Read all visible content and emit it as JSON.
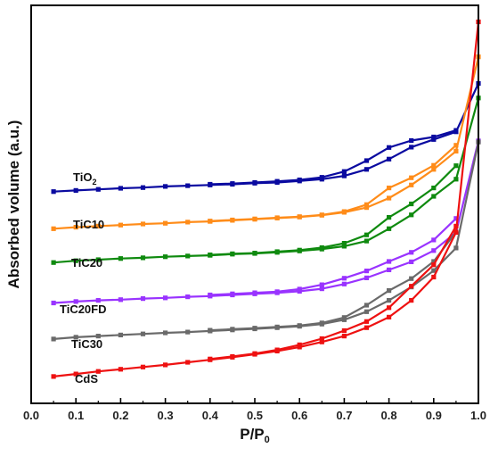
{
  "chart_data": {
    "type": "line",
    "xlabel": "P/P",
    "xlabel_subscript": "0",
    "ylabel": "Absorbed volume (a.u.)",
    "xlim": [
      0.0,
      1.0
    ],
    "ylim": [
      0,
      100
    ],
    "grid": false,
    "legend": "inline labels",
    "x_ticks": [
      "0.0",
      "0.1",
      "0.2",
      "0.3",
      "0.4",
      "0.5",
      "0.6",
      "0.7",
      "0.8",
      "0.9",
      "1.0"
    ],
    "series": [
      {
        "name": "TiO",
        "name_subscript": "2",
        "color": "#0a0aa0",
        "adsorption": {
          "x": [
            0.05,
            0.1,
            0.15,
            0.2,
            0.25,
            0.3,
            0.35,
            0.4,
            0.45,
            0.5,
            0.55,
            0.6,
            0.65,
            0.7,
            0.75,
            0.8,
            0.85,
            0.9,
            0.95,
            1.0
          ],
          "y": [
            51.8,
            52.1,
            52.4,
            52.7,
            52.9,
            53.2,
            53.4,
            53.6,
            53.8,
            54.1,
            54.3,
            54.7,
            55.2,
            56.1,
            57.9,
            60.7,
            64.0,
            66.1,
            68.2,
            81.5
          ]
        },
        "desorption": {
          "x": [
            0.95,
            0.9,
            0.85,
            0.8,
            0.75,
            0.7,
            0.65,
            0.6,
            0.55,
            0.5,
            0.45,
            0.4
          ],
          "y": [
            68.6,
            66.8,
            65.8,
            63.9,
            60.3,
            57.3,
            55.7,
            55.0,
            54.6,
            54.3,
            54.0,
            53.8
          ]
        }
      },
      {
        "name": "TiC10",
        "color": "#ff8c19",
        "adsorption": {
          "x": [
            0.05,
            0.1,
            0.15,
            0.2,
            0.25,
            0.3,
            0.35,
            0.4,
            0.45,
            0.5,
            0.55,
            0.6,
            0.65,
            0.7,
            0.75,
            0.8,
            0.85,
            0.9,
            0.95,
            1.0
          ],
          "y": [
            41.6,
            42.0,
            42.3,
            42.6,
            42.9,
            43.1,
            43.4,
            43.6,
            43.9,
            44.2,
            44.5,
            44.8,
            45.3,
            46.1,
            47.4,
            50.0,
            53.6,
            57.9,
            62.9,
            88.8
          ]
        },
        "desorption": {
          "x": [
            0.95,
            0.9,
            0.85,
            0.8,
            0.75,
            0.7,
            0.65,
            0.6,
            0.55,
            0.5,
            0.45,
            0.4
          ],
          "y": [
            64.5,
            59.0,
            55.6,
            52.8,
            48.2,
            46.3,
            45.4,
            44.9,
            44.6,
            44.3,
            44.0,
            43.7
          ]
        }
      },
      {
        "name": "TiC20",
        "color": "#0f8a0f",
        "adsorption": {
          "x": [
            0.05,
            0.1,
            0.15,
            0.2,
            0.25,
            0.3,
            0.35,
            0.4,
            0.45,
            0.5,
            0.55,
            0.6,
            0.65,
            0.7,
            0.75,
            0.8,
            0.85,
            0.9,
            0.95,
            1.0
          ],
          "y": [
            32.3,
            32.8,
            33.1,
            33.4,
            33.6,
            33.9,
            34.1,
            34.3,
            34.6,
            34.8,
            35.1,
            35.5,
            36.0,
            36.8,
            38.2,
            41.6,
            45.4,
            50.5,
            55.2,
            77.5
          ]
        },
        "desorption": {
          "x": [
            0.95,
            0.9,
            0.85,
            0.8,
            0.75,
            0.7,
            0.65,
            0.6,
            0.55,
            0.5,
            0.45,
            0.4
          ],
          "y": [
            58.9,
            52.8,
            48.4,
            44.7,
            39.9,
            37.6,
            36.4,
            35.7,
            35.3,
            34.9,
            34.7,
            34.4
          ]
        }
      },
      {
        "name": "TiC20FD",
        "color": "#9933ff",
        "adsorption": {
          "x": [
            0.05,
            0.1,
            0.15,
            0.2,
            0.25,
            0.3,
            0.35,
            0.4,
            0.45,
            0.5,
            0.55,
            0.6,
            0.65,
            0.7,
            0.75,
            0.8,
            0.85,
            0.9,
            0.95,
            1.0
          ],
          "y": [
            21.2,
            21.6,
            21.9,
            22.1,
            22.4,
            22.6,
            22.9,
            23.1,
            23.4,
            23.7,
            24.0,
            24.4,
            25.1,
            26.4,
            28.1,
            30.3,
            32.5,
            35.6,
            40.6,
            65.7
          ]
        },
        "desorption": {
          "x": [
            0.95,
            0.9,
            0.85,
            0.8,
            0.75,
            0.7,
            0.65,
            0.6,
            0.55,
            0.5,
            0.45,
            0.4
          ],
          "y": [
            44.4,
            38.5,
            35.1,
            32.6,
            30.0,
            28.0,
            26.2,
            25.0,
            24.3,
            24.0,
            23.7,
            23.4
          ]
        }
      },
      {
        "name": "TiC30",
        "color": "#6a6a6a",
        "adsorption": {
          "x": [
            0.05,
            0.1,
            0.15,
            0.2,
            0.25,
            0.3,
            0.35,
            0.4,
            0.45,
            0.5,
            0.55,
            0.6,
            0.65,
            0.7,
            0.75,
            0.8,
            0.85,
            0.9,
            0.95,
            1.0
          ],
          "y": [
            11.3,
            11.8,
            12.1,
            12.4,
            12.7,
            13.0,
            13.2,
            13.5,
            13.8,
            14.1,
            14.4,
            14.8,
            15.4,
            16.6,
            18.8,
            21.9,
            25.6,
            30.1,
            36.3,
            65.4
          ]
        },
        "desorption": {
          "x": [
            0.95,
            0.9,
            0.85,
            0.8,
            0.75,
            0.7,
            0.65,
            0.6,
            0.55,
            0.5,
            0.45,
            0.4
          ],
          "y": [
            40.7,
            32.6,
            27.9,
            24.6,
            20.6,
            17.2,
            15.7,
            15.0,
            14.6,
            14.3,
            14.0,
            13.7
          ]
        }
      },
      {
        "name": "CdS",
        "color": "#ee1111",
        "adsorption": {
          "x": [
            0.05,
            0.1,
            0.15,
            0.2,
            0.25,
            0.3,
            0.35,
            0.4,
            0.45,
            0.5,
            0.55,
            0.6,
            0.65,
            0.7,
            0.75,
            0.8,
            0.85,
            0.9,
            0.95,
            1.0
          ],
          "y": [
            1.0,
            1.7,
            2.4,
            3.0,
            3.6,
            4.2,
            4.9,
            5.6,
            6.3,
            7.1,
            8.0,
            9.1,
            10.5,
            12.1,
            14.4,
            17.3,
            21.9,
            28.3,
            40.6,
            98.4
          ]
        },
        "desorption": {
          "x": [
            0.95,
            0.9,
            0.85,
            0.8,
            0.75,
            0.7,
            0.65,
            0.6,
            0.55,
            0.5,
            0.45,
            0.4
          ],
          "y": [
            42.3,
            31.7,
            25.8,
            19.9,
            16.1,
            13.6,
            11.4,
            9.7,
            8.3,
            7.3,
            6.5,
            5.8
          ]
        }
      }
    ]
  }
}
